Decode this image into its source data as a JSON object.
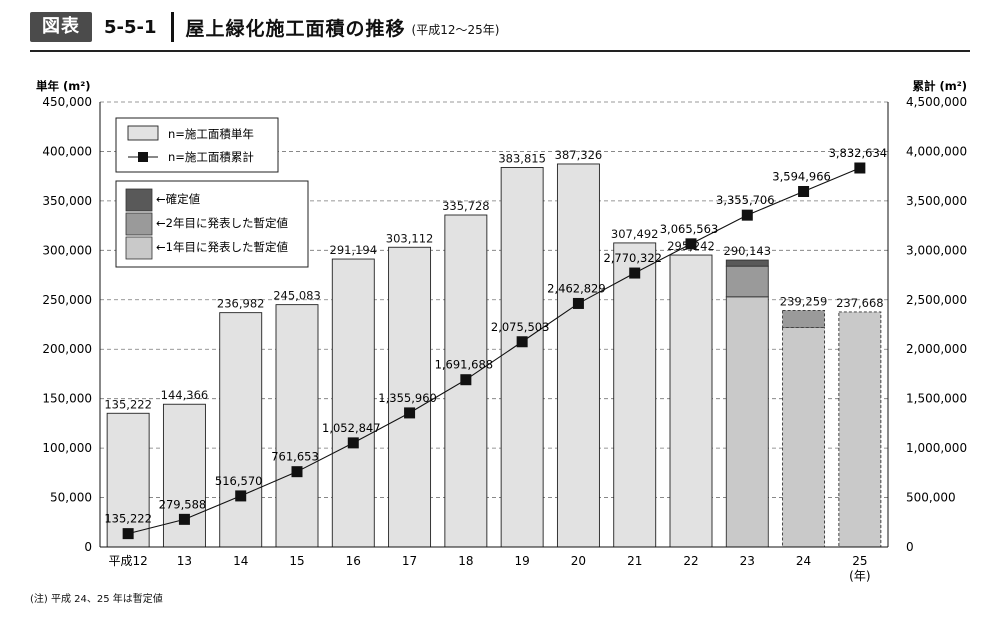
{
  "header": {
    "badge": "図表",
    "figure_number": "5-5-1",
    "title": "屋上緑化施工面積の推移",
    "subtitle": "(平成12〜25年)"
  },
  "note": "(注) 平成 24、25 年は暫定値",
  "chart_data": {
    "type": "bar",
    "categories": [
      "平成12",
      "13",
      "14",
      "15",
      "16",
      "17",
      "18",
      "19",
      "20",
      "21",
      "22",
      "23",
      "24",
      "25"
    ],
    "x_unit_label": "(年)",
    "ylabel_left": "単年 (m²)",
    "ylabel_right": "累計 (m²)",
    "ylim_left": [
      0,
      450000
    ],
    "ylim_right": [
      0,
      4500000
    ],
    "yticks_left": [
      "0",
      "50,000",
      "100,000",
      "150,000",
      "200,000",
      "250,000",
      "300,000",
      "350,000",
      "400,000",
      "450,000"
    ],
    "yticks_right": [
      "0",
      "500,000",
      "1,000,000",
      "1,500,000",
      "2,000,000",
      "2,500,000",
      "3,000,000",
      "3,500,000",
      "4,000,000",
      "4,500,000"
    ],
    "grid": true,
    "annual_values": [
      135222,
      144366,
      236982,
      245083,
      291194,
      303112,
      335728,
      383815,
      387326,
      307492,
      295242,
      290143,
      239259,
      237668
    ],
    "annual_labels": [
      "135,222",
      "144,366",
      "236,982",
      "245,083",
      "291,194",
      "303,112",
      "335,728",
      "383,815",
      "387,326",
      "307,492",
      "295,242",
      "290,143",
      "239,259",
      "237,668"
    ],
    "cumulative_values": [
      135222,
      279588,
      516570,
      761653,
      1052847,
      1355960,
      1691688,
      2075503,
      2462829,
      2770322,
      3065563,
      3355706,
      3594966,
      3832634
    ],
    "cumulative_labels": [
      "135,222",
      "279,588",
      "516,570",
      "761,653",
      "1,052,847",
      "1,355,960",
      "1,691,688",
      "2,075,503",
      "2,462,829",
      "2,770,322",
      "3,065,563",
      "3,355,706",
      "3,594,966",
      "3,832,634"
    ],
    "provisional_segments": [
      {
        "index": 11,
        "year1": 253000,
        "year2": 284000
      },
      {
        "index": 12,
        "year1": 222000
      },
      {
        "index": 13,
        "year1": 237668
      }
    ],
    "legend_main": [
      "n=施工面積単年",
      "n=施工面積累計"
    ],
    "legend_status": [
      "←確定値",
      "←2年目に発表した暫定値",
      "←1年目に発表した暫定値"
    ],
    "legend_placement": "top-left",
    "colors": {
      "annual_bar": "#e2e2e2",
      "confirmed": "#595959",
      "provisional_year2": "#9a9a9a",
      "provisional_year1": "#c9c9c9",
      "line": "#111111",
      "grid": "#777777"
    }
  }
}
